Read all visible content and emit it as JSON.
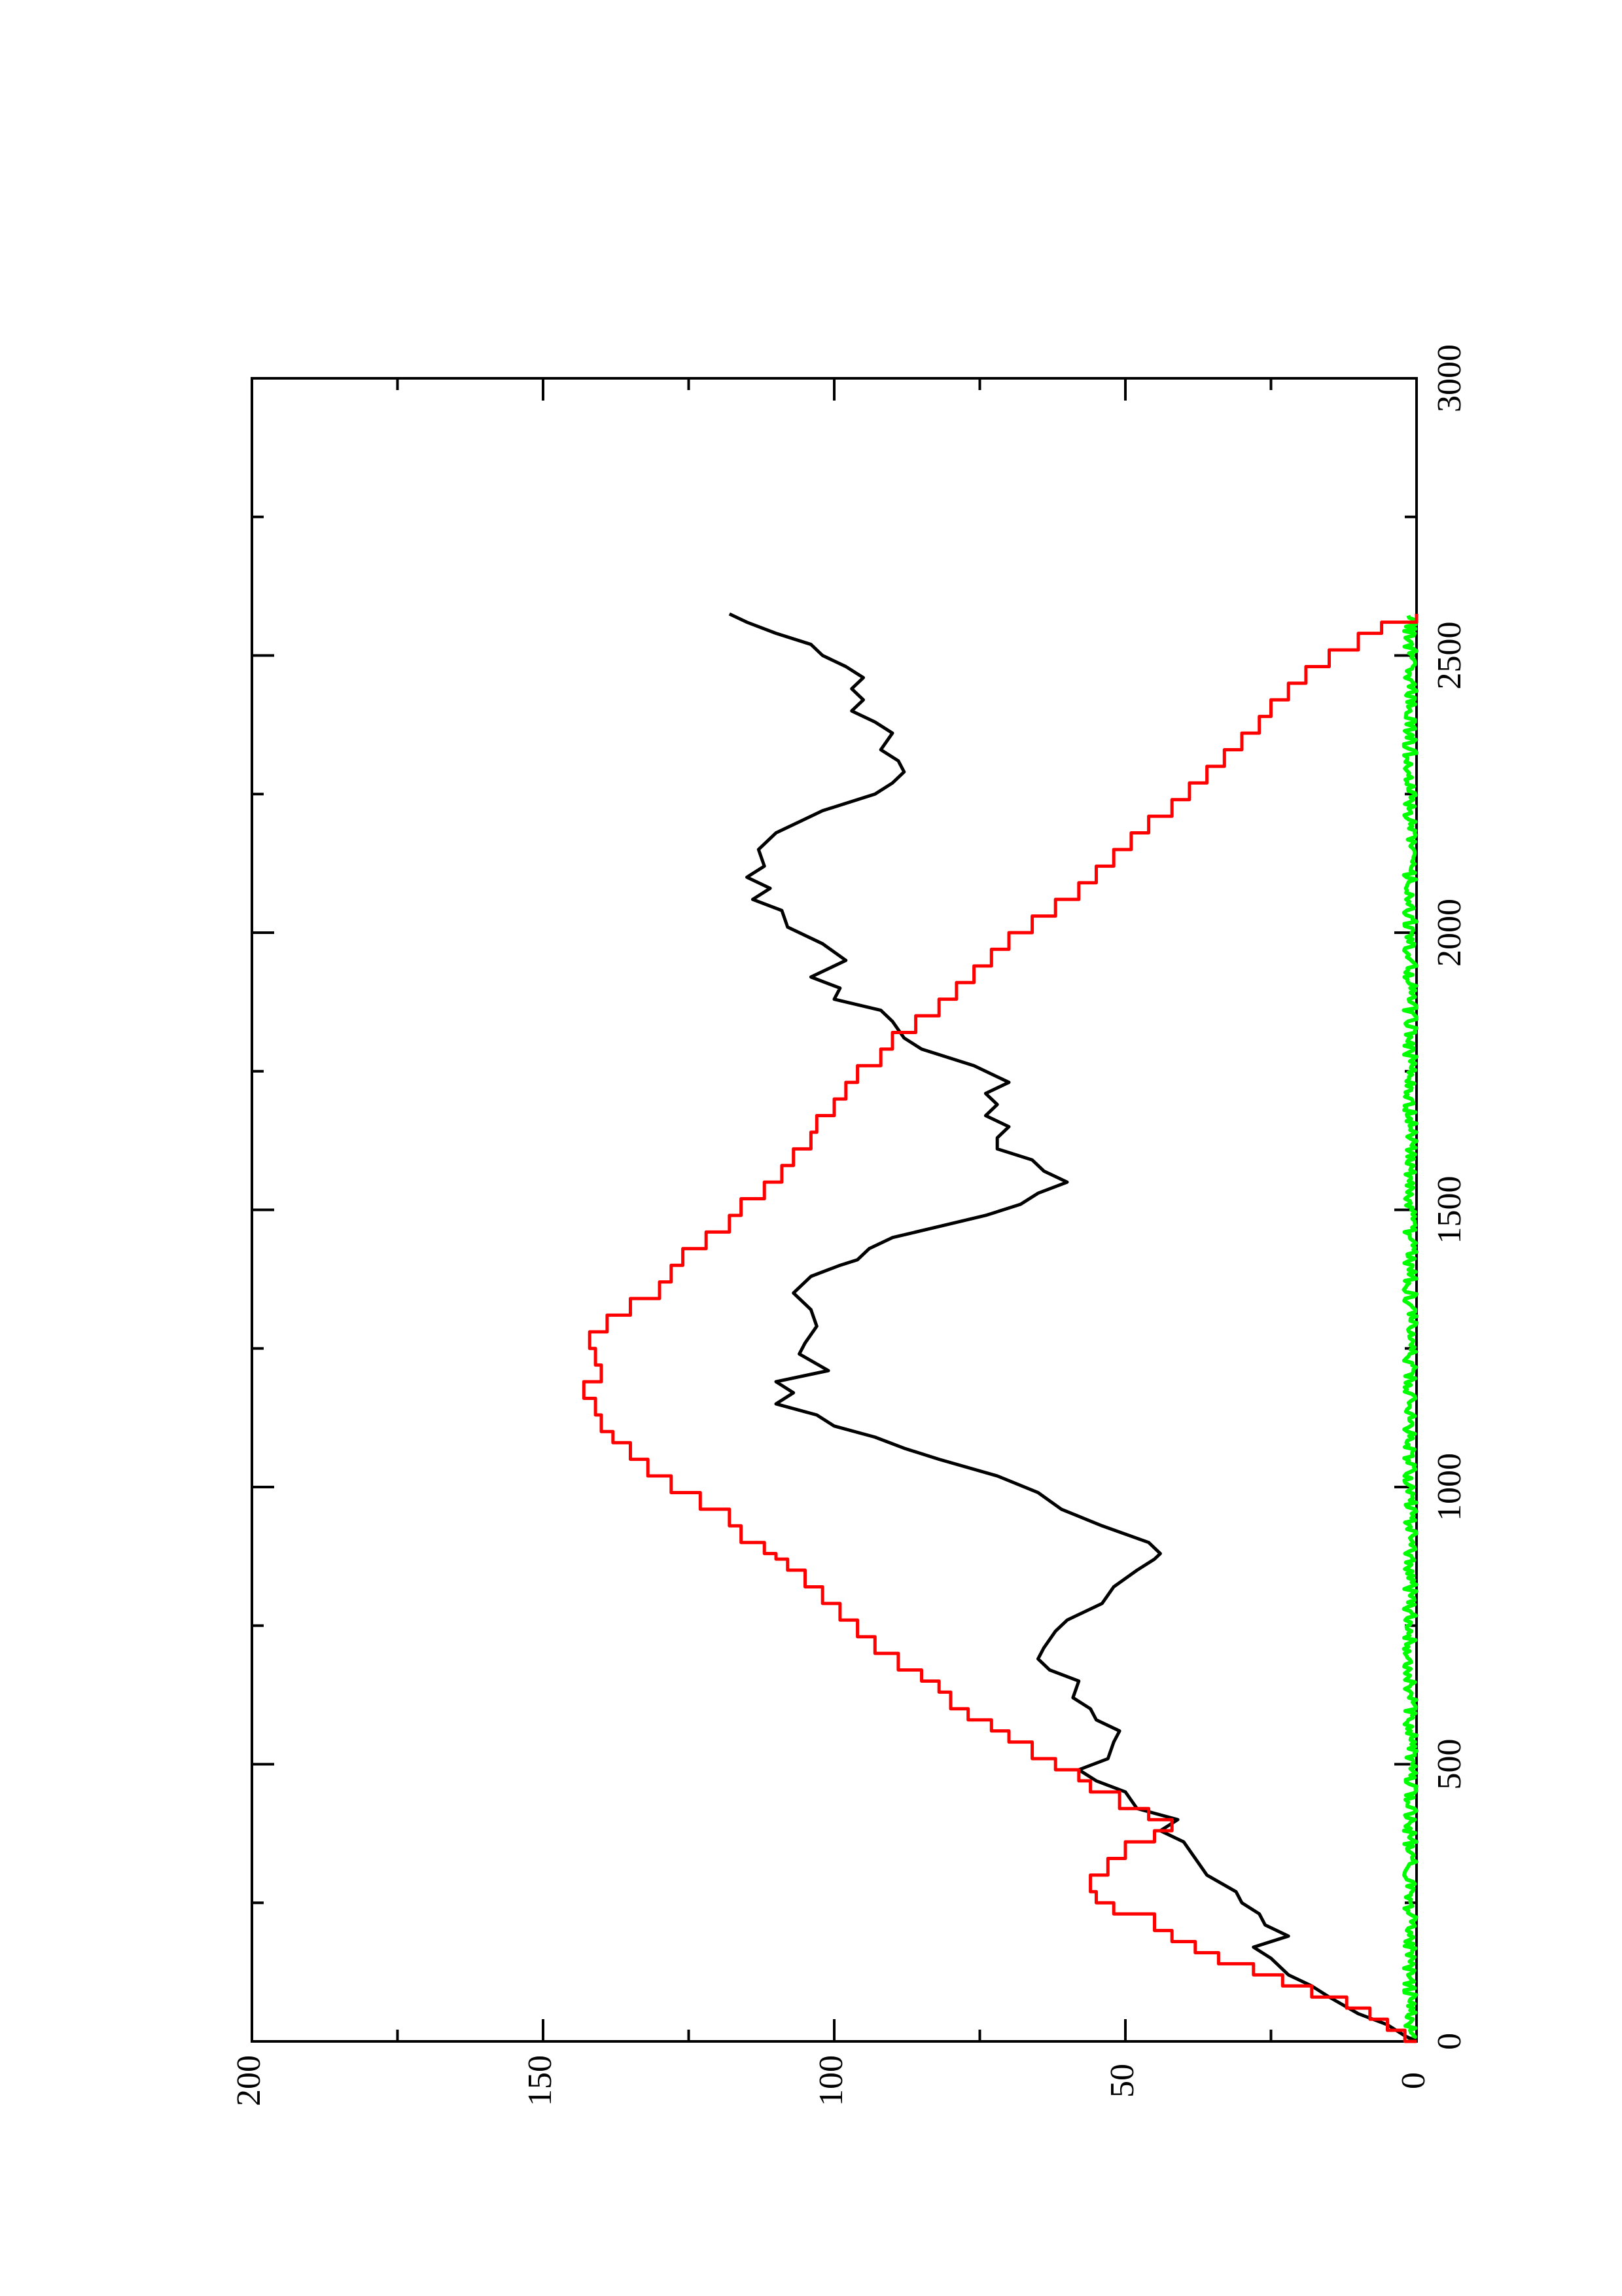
{
  "chart_data": {
    "type": "line",
    "title": "",
    "xlabel": "",
    "ylabel": "",
    "orientation": "rotated-90-cw",
    "xlim": [
      0,
      3000
    ],
    "ylim": [
      0,
      200
    ],
    "x_ticks": [
      0,
      500,
      1000,
      1500,
      2000,
      2500,
      3000
    ],
    "x_tick_labels": [
      "0",
      "500",
      "1000",
      "1500",
      "2000",
      "2500",
      "3000"
    ],
    "y_ticks": [
      0,
      50,
      100,
      150,
      200
    ],
    "y_tick_labels": [
      "0",
      "50",
      "100",
      "150",
      "200"
    ],
    "grid": false,
    "legend": "none",
    "series": [
      {
        "color": "#000000",
        "style": "noisy-line",
        "points": [
          [
            0,
            0
          ],
          [
            10,
            2
          ],
          [
            30,
            5
          ],
          [
            50,
            10
          ],
          [
            80,
            15
          ],
          [
            100,
            18
          ],
          [
            120,
            22
          ],
          [
            150,
            25
          ],
          [
            170,
            28
          ],
          [
            190,
            22
          ],
          [
            210,
            26
          ],
          [
            230,
            27
          ],
          [
            250,
            30
          ],
          [
            270,
            31
          ],
          [
            300,
            36
          ],
          [
            330,
            38
          ],
          [
            360,
            40
          ],
          [
            380,
            44
          ],
          [
            400,
            41
          ],
          [
            420,
            48
          ],
          [
            450,
            50
          ],
          [
            470,
            55
          ],
          [
            490,
            58
          ],
          [
            510,
            53
          ],
          [
            540,
            52
          ],
          [
            560,
            51
          ],
          [
            580,
            55
          ],
          [
            600,
            56
          ],
          [
            620,
            59
          ],
          [
            650,
            58
          ],
          [
            670,
            63
          ],
          [
            690,
            65
          ],
          [
            710,
            64
          ],
          [
            740,
            62
          ],
          [
            760,
            60
          ],
          [
            790,
            54
          ],
          [
            820,
            52
          ],
          [
            850,
            48
          ],
          [
            870,
            45
          ],
          [
            880,
            44
          ],
          [
            900,
            46
          ],
          [
            930,
            54
          ],
          [
            960,
            61
          ],
          [
            990,
            65
          ],
          [
            1020,
            72
          ],
          [
            1050,
            82
          ],
          [
            1070,
            88
          ],
          [
            1090,
            93
          ],
          [
            1110,
            100
          ],
          [
            1130,
            103
          ],
          [
            1150,
            110
          ],
          [
            1170,
            107
          ],
          [
            1190,
            110
          ],
          [
            1210,
            101
          ],
          [
            1240,
            106
          ],
          [
            1260,
            105
          ],
          [
            1290,
            103
          ],
          [
            1320,
            104
          ],
          [
            1350,
            107
          ],
          [
            1380,
            104
          ],
          [
            1400,
            99
          ],
          [
            1410,
            96
          ],
          [
            1430,
            94
          ],
          [
            1450,
            90
          ],
          [
            1470,
            82
          ],
          [
            1490,
            74
          ],
          [
            1510,
            68
          ],
          [
            1530,
            65
          ],
          [
            1550,
            60
          ],
          [
            1570,
            64
          ],
          [
            1590,
            66
          ],
          [
            1610,
            72
          ],
          [
            1630,
            72
          ],
          [
            1650,
            70
          ],
          [
            1670,
            74
          ],
          [
            1690,
            72
          ],
          [
            1710,
            74
          ],
          [
            1730,
            70
          ],
          [
            1760,
            76
          ],
          [
            1790,
            85
          ],
          [
            1810,
            88
          ],
          [
            1840,
            90
          ],
          [
            1860,
            92
          ],
          [
            1880,
            100
          ],
          [
            1900,
            99
          ],
          [
            1920,
            104
          ],
          [
            1950,
            98
          ],
          [
            1980,
            102
          ],
          [
            2010,
            108
          ],
          [
            2040,
            109
          ],
          [
            2060,
            114
          ],
          [
            2080,
            111
          ],
          [
            2100,
            115
          ],
          [
            2120,
            112
          ],
          [
            2150,
            113
          ],
          [
            2180,
            110
          ],
          [
            2200,
            106
          ],
          [
            2220,
            102
          ],
          [
            2250,
            93
          ],
          [
            2270,
            90
          ],
          [
            2290,
            88
          ],
          [
            2310,
            89
          ],
          [
            2330,
            92
          ],
          [
            2360,
            90
          ],
          [
            2380,
            93
          ],
          [
            2400,
            97
          ],
          [
            2420,
            95
          ],
          [
            2440,
            97
          ],
          [
            2460,
            95
          ],
          [
            2480,
            98
          ],
          [
            2500,
            102
          ],
          [
            2520,
            104
          ],
          [
            2540,
            110
          ],
          [
            2560,
            115
          ],
          [
            2575,
            118
          ]
        ]
      },
      {
        "color": "#ff0000",
        "style": "step-line",
        "points": [
          [
            0,
            0
          ],
          [
            20,
            2
          ],
          [
            40,
            5
          ],
          [
            60,
            8
          ],
          [
            80,
            12
          ],
          [
            100,
            18
          ],
          [
            120,
            23
          ],
          [
            140,
            28
          ],
          [
            160,
            34
          ],
          [
            180,
            38
          ],
          [
            200,
            42
          ],
          [
            230,
            45
          ],
          [
            250,
            52
          ],
          [
            270,
            55
          ],
          [
            300,
            56
          ],
          [
            330,
            53
          ],
          [
            360,
            50
          ],
          [
            380,
            45
          ],
          [
            400,
            42
          ],
          [
            420,
            46
          ],
          [
            450,
            51
          ],
          [
            470,
            56
          ],
          [
            490,
            58
          ],
          [
            510,
            62
          ],
          [
            540,
            66
          ],
          [
            560,
            70
          ],
          [
            580,
            73
          ],
          [
            600,
            77
          ],
          [
            630,
            80
          ],
          [
            650,
            82
          ],
          [
            670,
            85
          ],
          [
            700,
            89
          ],
          [
            730,
            93
          ],
          [
            760,
            96
          ],
          [
            790,
            99
          ],
          [
            820,
            102
          ],
          [
            850,
            105
          ],
          [
            870,
            108
          ],
          [
            880,
            110
          ],
          [
            900,
            112
          ],
          [
            930,
            116
          ],
          [
            960,
            118
          ],
          [
            990,
            123
          ],
          [
            1020,
            128
          ],
          [
            1050,
            132
          ],
          [
            1080,
            135
          ],
          [
            1100,
            138
          ],
          [
            1130,
            140
          ],
          [
            1160,
            141
          ],
          [
            1190,
            143
          ],
          [
            1220,
            140
          ],
          [
            1250,
            141
          ],
          [
            1280,
            142
          ],
          [
            1310,
            139
          ],
          [
            1340,
            135
          ],
          [
            1370,
            130
          ],
          [
            1400,
            128
          ],
          [
            1430,
            126
          ],
          [
            1460,
            122
          ],
          [
            1490,
            118
          ],
          [
            1520,
            116
          ],
          [
            1550,
            112
          ],
          [
            1580,
            109
          ],
          [
            1610,
            107
          ],
          [
            1640,
            104
          ],
          [
            1670,
            103
          ],
          [
            1700,
            100
          ],
          [
            1730,
            98
          ],
          [
            1760,
            96
          ],
          [
            1790,
            92
          ],
          [
            1820,
            90
          ],
          [
            1850,
            86
          ],
          [
            1880,
            82
          ],
          [
            1910,
            79
          ],
          [
            1940,
            76
          ],
          [
            1970,
            73
          ],
          [
            2000,
            70
          ],
          [
            2030,
            66
          ],
          [
            2060,
            62
          ],
          [
            2090,
            58
          ],
          [
            2120,
            55
          ],
          [
            2150,
            52
          ],
          [
            2180,
            49
          ],
          [
            2210,
            46
          ],
          [
            2240,
            42
          ],
          [
            2270,
            39
          ],
          [
            2300,
            36
          ],
          [
            2330,
            33
          ],
          [
            2360,
            30
          ],
          [
            2390,
            27
          ],
          [
            2420,
            25
          ],
          [
            2450,
            22
          ],
          [
            2480,
            19
          ],
          [
            2510,
            15
          ],
          [
            2540,
            10
          ],
          [
            2560,
            6
          ],
          [
            2575,
            0
          ]
        ]
      },
      {
        "color": "#00ff00",
        "style": "noisy-baseline",
        "points": [
          [
            0,
            0
          ],
          [
            500,
            0
          ],
          [
            1000,
            0
          ],
          [
            1500,
            0
          ],
          [
            2000,
            0
          ],
          [
            2575,
            0
          ]
        ]
      }
    ]
  }
}
